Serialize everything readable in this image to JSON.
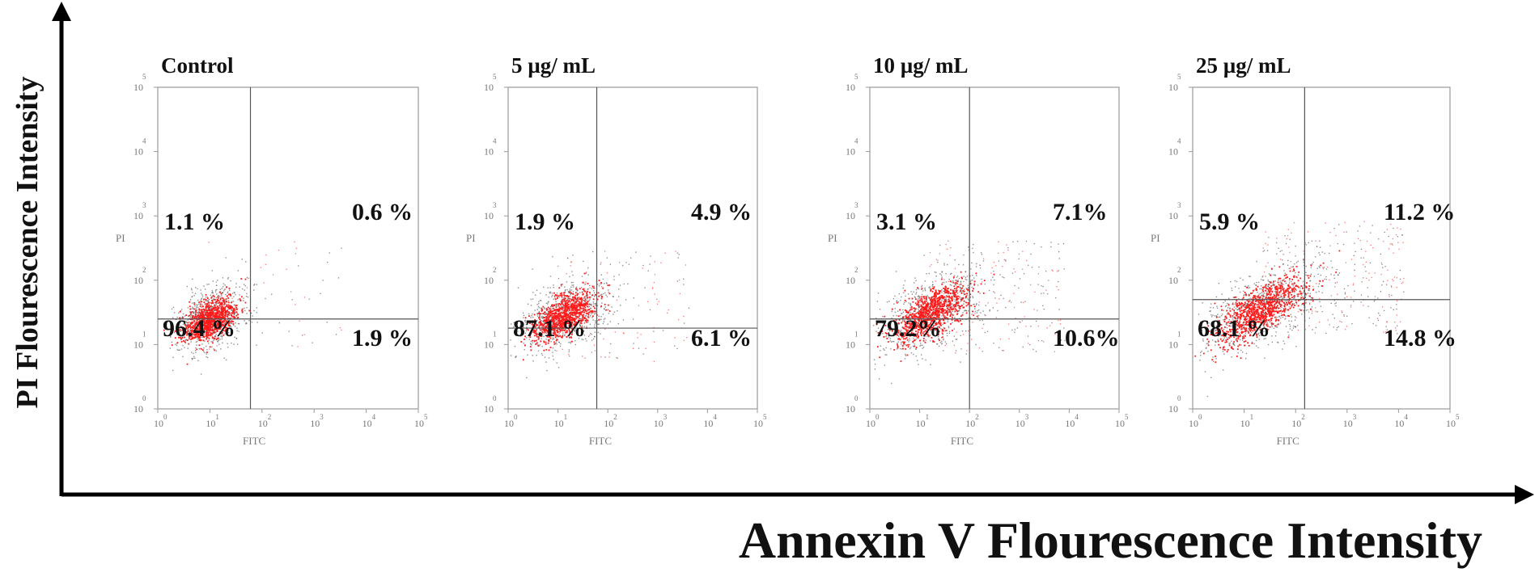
{
  "axes": {
    "x_title": "Annexin V Flourescence  Intensity",
    "y_title": "PI Flourescence Intensity"
  },
  "colors": {
    "gated_events": "#ff1a1a",
    "other_events": "#333333",
    "axis": "#000000",
    "frame": "#9a9a9a"
  },
  "chart_data": [
    {
      "type": "scatter",
      "title": "Control",
      "xlabel": "FITC",
      "ylabel": "PI",
      "x_scale": "log",
      "y_scale": "log",
      "xlim": [
        1,
        100000
      ],
      "ylim": [
        1,
        100000
      ],
      "x_ticks": [
        "10^0",
        "10^1",
        "10^2",
        "10^3",
        "10^4",
        "10^5"
      ],
      "y_ticks": [
        "10^0",
        "10^1",
        "10^2",
        "10^3",
        "10^4",
        "10^5"
      ],
      "quadrants": {
        "upper_left": "1.1 %",
        "upper_right": "0.6 %",
        "lower_left": "96.4 %",
        "lower_right": "1.9 %"
      },
      "quadrant_values": {
        "upper_left": 1.1,
        "upper_right": 0.6,
        "lower_left": 96.4,
        "lower_right": 1.9
      },
      "gate_x": 60,
      "gate_y": 25
    },
    {
      "type": "scatter",
      "title": "5 µg/ mL",
      "xlabel": "FITC",
      "ylabel": "PI",
      "x_scale": "log",
      "y_scale": "log",
      "xlim": [
        1,
        100000
      ],
      "ylim": [
        1,
        100000
      ],
      "x_ticks": [
        "10^0",
        "10^1",
        "10^2",
        "10^3",
        "10^4",
        "10^5"
      ],
      "y_ticks": [
        "10^0",
        "10^1",
        "10^2",
        "10^3",
        "10^4",
        "10^5"
      ],
      "quadrants": {
        "upper_left": "1.9 %",
        "upper_right": "4.9 %",
        "lower_left": "87.1 %",
        "lower_right": "6.1 %"
      },
      "quadrant_values": {
        "upper_left": 1.9,
        "upper_right": 4.9,
        "lower_left": 87.1,
        "lower_right": 6.1
      },
      "gate_x": 60,
      "gate_y": 18
    },
    {
      "type": "scatter",
      "title": "10 µg/ mL",
      "xlabel": "FITC",
      "ylabel": "PI",
      "x_scale": "log",
      "y_scale": "log",
      "xlim": [
        1,
        100000
      ],
      "ylim": [
        1,
        100000
      ],
      "x_ticks": [
        "10^0",
        "10^1",
        "10^2",
        "10^3",
        "10^4",
        "10^5"
      ],
      "y_ticks": [
        "10^0",
        "10^1",
        "10^2",
        "10^3",
        "10^4",
        "10^5"
      ],
      "quadrants": {
        "upper_left": "3.1 %",
        "upper_right": "7.1%",
        "lower_left": "79.2%",
        "lower_right": "10.6%"
      },
      "quadrant_values": {
        "upper_left": 3.1,
        "upper_right": 7.1,
        "lower_left": 79.2,
        "lower_right": 10.6
      },
      "gate_x": 100,
      "gate_y": 25
    },
    {
      "type": "scatter",
      "title": "25 µg/ mL",
      "xlabel": "FITC",
      "ylabel": "PI",
      "x_scale": "log",
      "y_scale": "log",
      "xlim": [
        1,
        100000
      ],
      "ylim": [
        1,
        100000
      ],
      "x_ticks": [
        "10^0",
        "10^1",
        "10^2",
        "10^3",
        "10^4",
        "10^5"
      ],
      "y_ticks": [
        "10^0",
        "10^1",
        "10^2",
        "10^3",
        "10^4",
        "10^5"
      ],
      "quadrants": {
        "upper_left": "5.9 %",
        "upper_right": "11.2 %",
        "lower_left": "68.1 %",
        "lower_right": "14.8 %"
      },
      "quadrant_values": {
        "upper_left": 5.9,
        "upper_right": 11.2,
        "lower_left": 68.1,
        "lower_right": 14.8
      },
      "gate_x": 150,
      "gate_y": 50
    }
  ]
}
